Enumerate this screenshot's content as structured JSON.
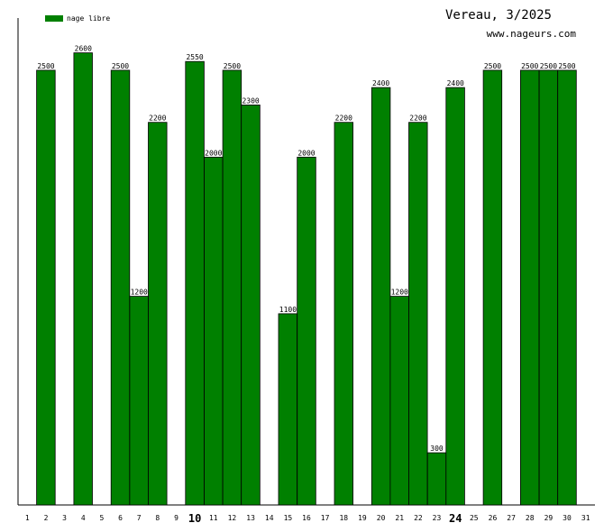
{
  "header": {
    "title": "Vereau, 3/2025",
    "subtitle": "www.nageurs.com"
  },
  "legend": {
    "label": "nage libre",
    "color": "#008000"
  },
  "chart_data": {
    "type": "bar",
    "title": "Vereau, 3/2025",
    "xlabel": "",
    "ylabel": "",
    "ylim": [
      0,
      2800
    ],
    "grid": false,
    "legend_position": "top-left",
    "bar_color": "#008000",
    "categories": [
      "1",
      "2",
      "3",
      "4",
      "5",
      "6",
      "7",
      "8",
      "9",
      "10",
      "11",
      "12",
      "13",
      "14",
      "15",
      "16",
      "17",
      "18",
      "19",
      "20",
      "21",
      "22",
      "23",
      "24",
      "25",
      "26",
      "27",
      "28",
      "29",
      "30",
      "31"
    ],
    "bold_categories": [
      "10",
      "24"
    ],
    "series": [
      {
        "name": "nage libre",
        "values": [
          0,
          2500,
          0,
          2600,
          0,
          2500,
          1200,
          2200,
          0,
          2550,
          2000,
          2500,
          2300,
          0,
          1100,
          2000,
          0,
          2200,
          0,
          2400,
          1200,
          2200,
          300,
          2400,
          0,
          2500,
          0,
          2500,
          2500,
          2500,
          0
        ]
      }
    ]
  }
}
